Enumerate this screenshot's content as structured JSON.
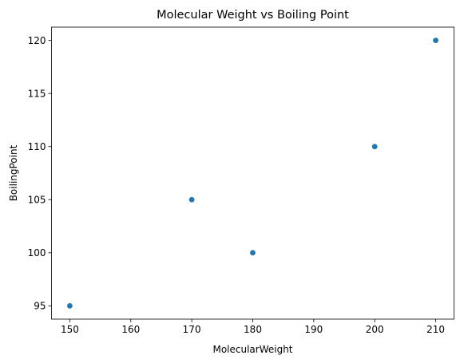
{
  "chart_data": {
    "type": "scatter",
    "title": "Molecular Weight vs Boiling Point",
    "xlabel": "MolecularWeight",
    "ylabel": "BoilingPoint",
    "xlim": [
      147,
      213
    ],
    "ylim": [
      93.75,
      121.25
    ],
    "xticks": [
      150,
      160,
      170,
      180,
      190,
      200,
      210
    ],
    "yticks": [
      95,
      100,
      105,
      110,
      115,
      120
    ],
    "grid": false,
    "marker_color": "#1f77b4",
    "points": [
      {
        "x": 150,
        "y": 95
      },
      {
        "x": 170,
        "y": 105
      },
      {
        "x": 180,
        "y": 100
      },
      {
        "x": 200,
        "y": 110
      },
      {
        "x": 210,
        "y": 120
      }
    ]
  }
}
